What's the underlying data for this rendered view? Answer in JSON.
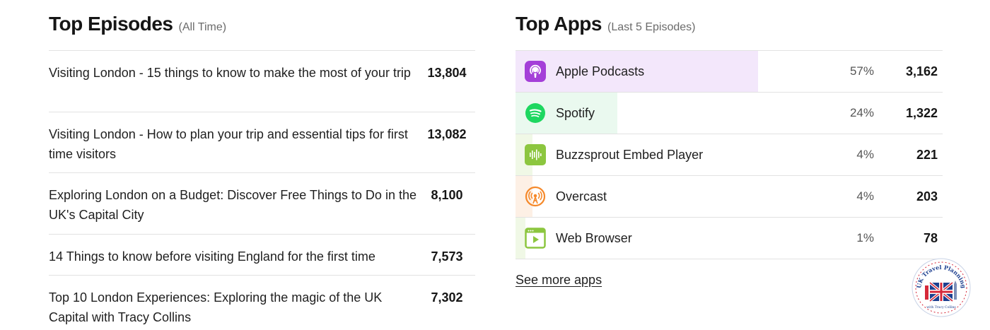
{
  "episodes_panel": {
    "title": "Top Episodes",
    "subtitle": "(All Time)",
    "items": [
      {
        "title": "Visiting London - 15 things to know to make the most of your trip",
        "count": "13,804"
      },
      {
        "title": "Visiting London - How to plan your trip and essential tips for first time visitors",
        "count": "13,082"
      },
      {
        "title": "Exploring London on a Budget: Discover Free Things to Do in the UK's Capital City",
        "count": "8,100"
      },
      {
        "title": "14 Things to know before visiting England for the first time",
        "count": "7,573"
      },
      {
        "title": "Top 10 London Experiences: Exploring the magic of the UK Capital with Tracy Collins",
        "count": "7,302"
      }
    ]
  },
  "apps_panel": {
    "title": "Top Apps",
    "subtitle": "(Last 5 Episodes)",
    "items": [
      {
        "name": "Apple Podcasts",
        "percent": "57%",
        "count": "3,162",
        "share": 0.57,
        "icon": "apple-podcasts-icon",
        "icon_color": "#a43fd8",
        "bar_color": "#f3e7fb"
      },
      {
        "name": "Spotify",
        "percent": "24%",
        "count": "1,322",
        "share": 0.24,
        "icon": "spotify-icon",
        "icon_color": "#1ed760",
        "bar_color": "#eaf9ef"
      },
      {
        "name": "Buzzsprout Embed Player",
        "percent": "4%",
        "count": "221",
        "share": 0.04,
        "icon": "buzzsprout-icon",
        "icon_color": "#8cc63f",
        "bar_color": "#f0f8e6"
      },
      {
        "name": "Overcast",
        "percent": "4%",
        "count": "203",
        "share": 0.04,
        "icon": "overcast-icon",
        "icon_color": "#f5892b",
        "bar_color": "#fdf0e5"
      },
      {
        "name": "Web Browser",
        "percent": "1%",
        "count": "78",
        "share": 0.01,
        "icon": "web-browser-icon",
        "icon_color": "#8cc63f",
        "bar_color": "#f0f8e6"
      }
    ],
    "see_more": "See more apps"
  },
  "logo": {
    "text": "UK Travel Planning",
    "subtext": "with Tracy Collins"
  }
}
